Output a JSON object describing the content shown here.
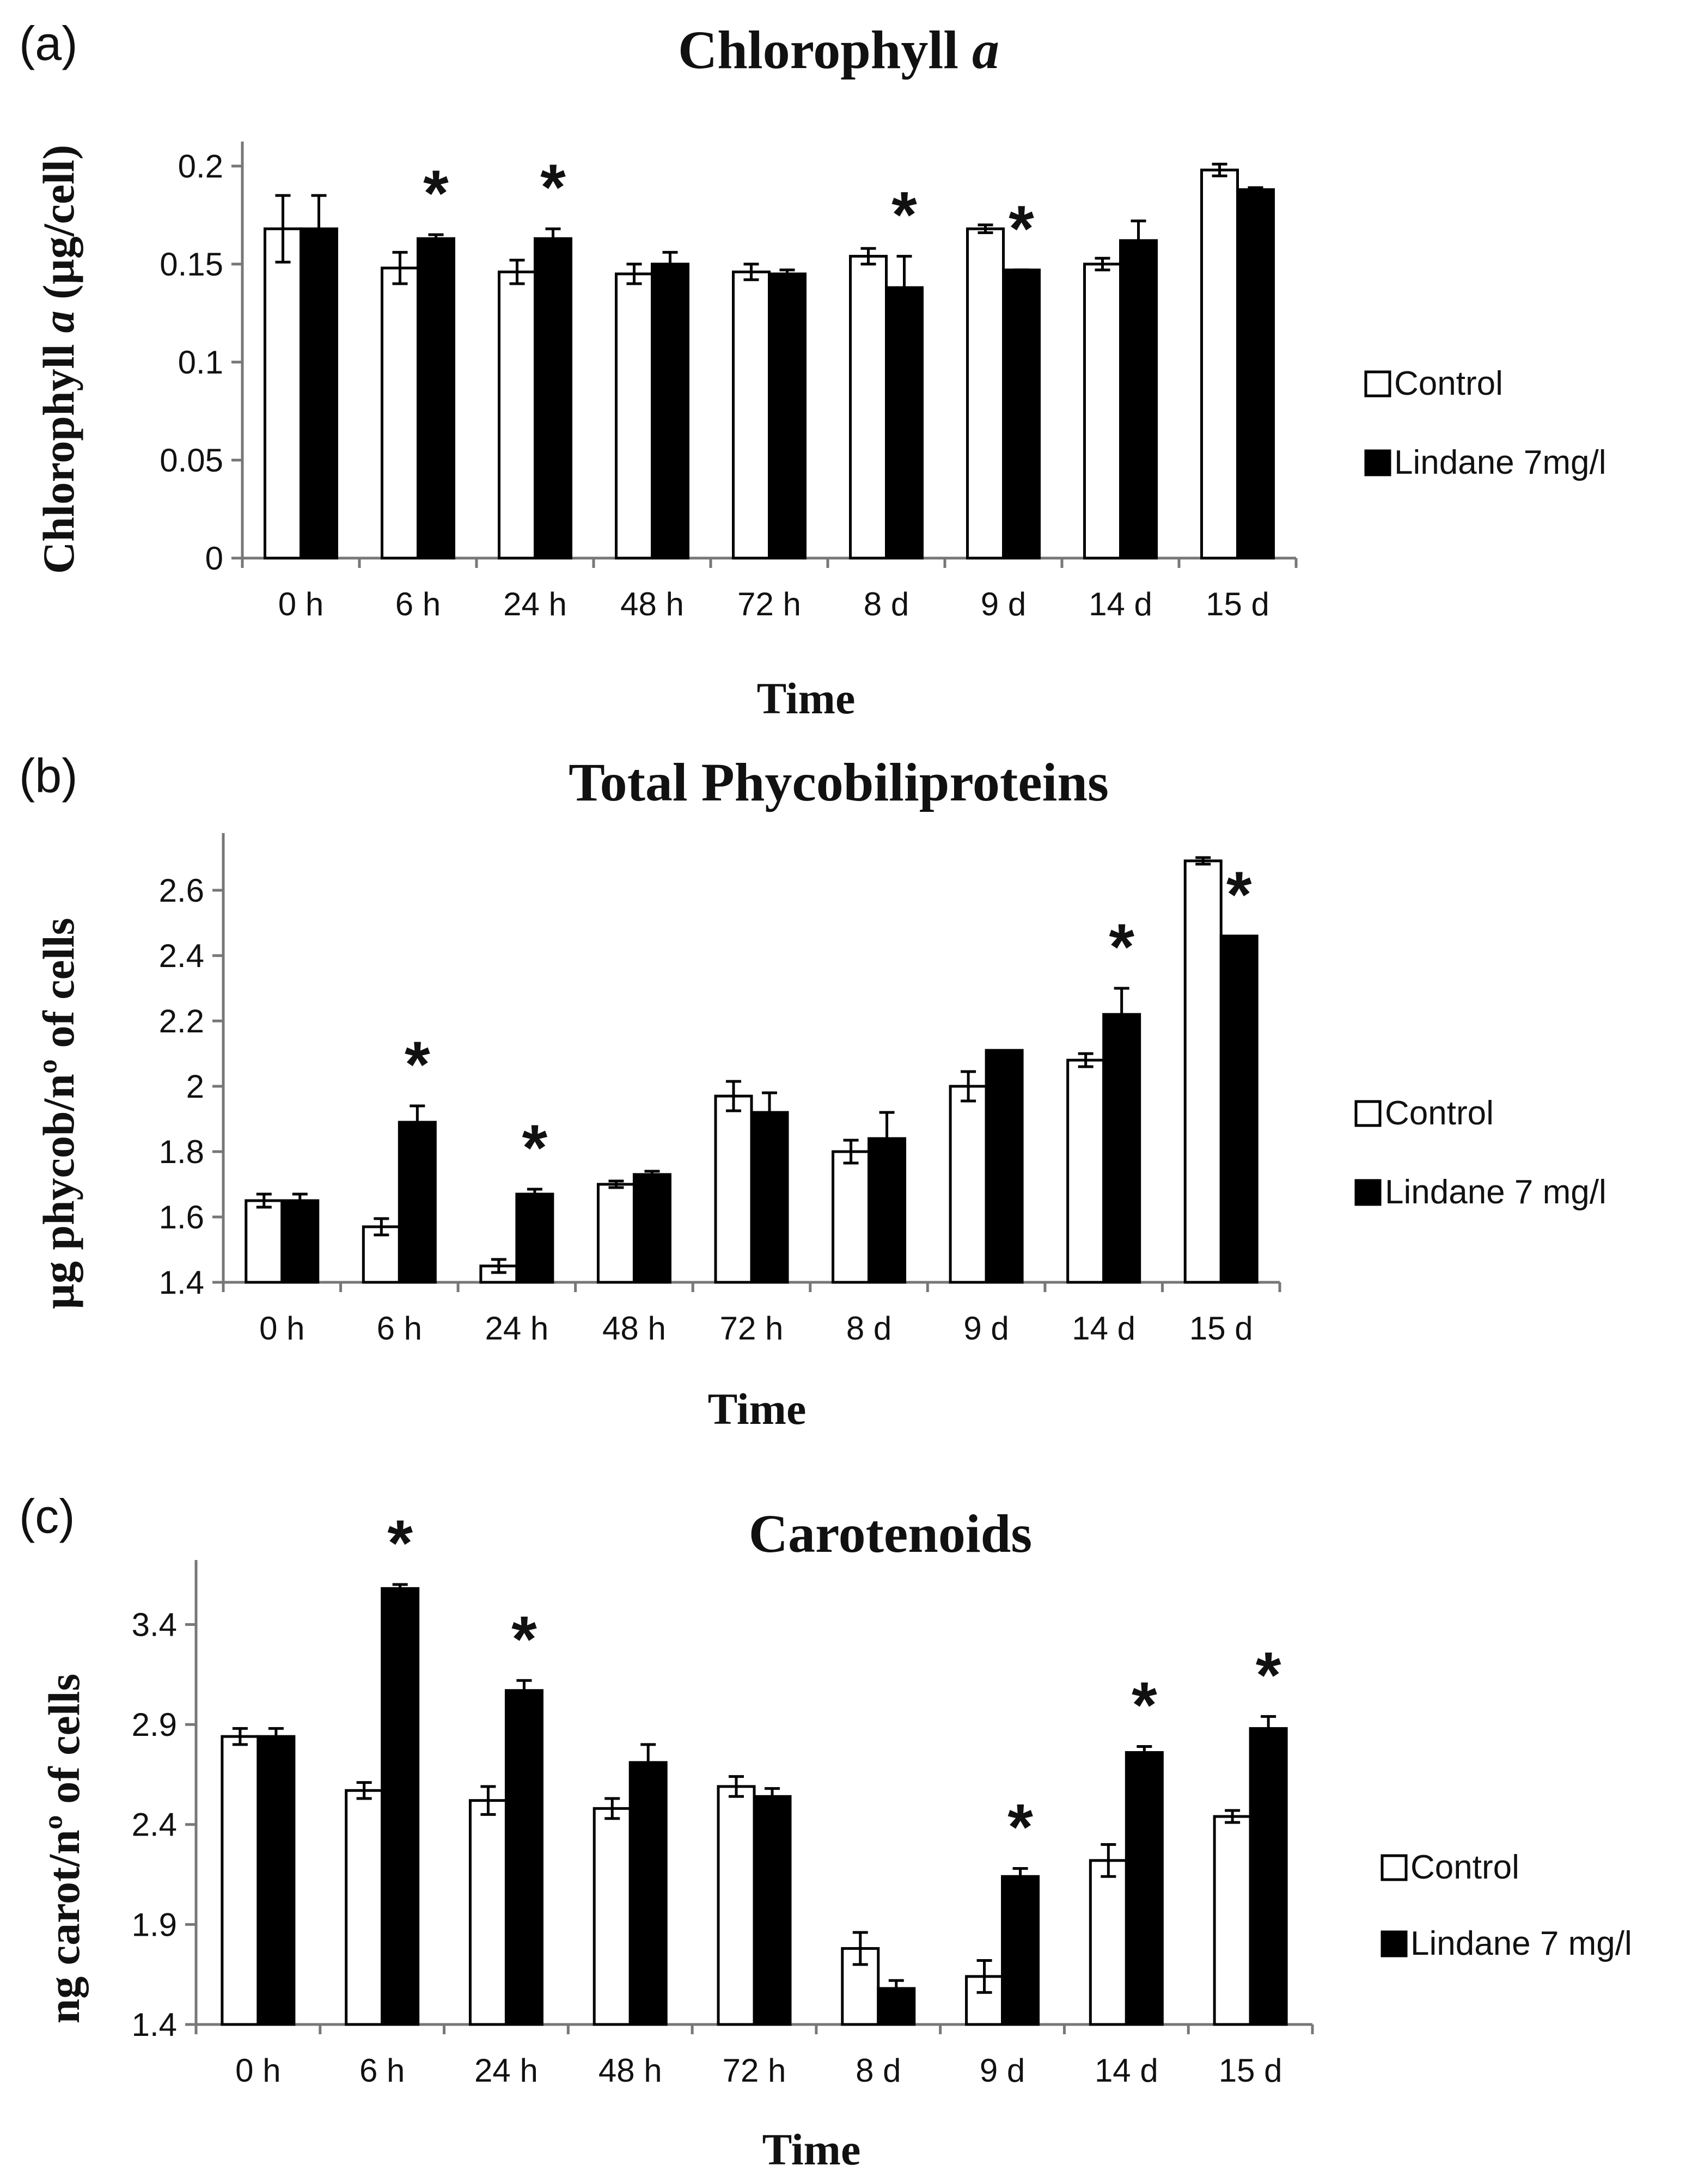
{
  "chart_data": [
    {
      "type": "bar",
      "panel_label": "(a)",
      "title": "Chlorophyll a",
      "title_main": "Chlorophyll ",
      "title_italic": "a",
      "ylabel_main": "Chlorophyll ",
      "ylabel_italic": "a",
      "ylabel_rest": " (µg/cell)",
      "xlabel": "Time",
      "categories": [
        "0 h",
        "6 h",
        "24 h",
        "48 h",
        "72 h",
        "8 d",
        "9 d",
        "14 d",
        "15 d"
      ],
      "ylim": [
        0,
        0.2
      ],
      "yticks": [
        0,
        0.05,
        0.1,
        0.15,
        0.2
      ],
      "ytick_labels": [
        "0",
        "0.05",
        "0.1",
        "0.15",
        "0.2"
      ],
      "series": [
        {
          "name": "Control",
          "values": [
            0.168,
            0.148,
            0.146,
            0.145,
            0.146,
            0.154,
            0.168,
            0.15,
            0.198
          ],
          "errors": [
            0.017,
            0.008,
            0.006,
            0.005,
            0.004,
            0.004,
            0.002,
            0.003,
            0.003
          ]
        },
        {
          "name": "Lindane 7mg/l",
          "values": [
            0.168,
            0.163,
            0.163,
            0.15,
            0.145,
            0.138,
            0.147,
            0.162,
            0.188
          ],
          "errors": [
            0.017,
            0.002,
            0.005,
            0.006,
            0.002,
            0.016,
            0.0,
            0.01,
            0.001
          ]
        }
      ],
      "significance": [
        "",
        "*",
        "*",
        "",
        "",
        "*",
        "*",
        "",
        ""
      ],
      "legend": [
        "Control",
        "Lindane 7mg/l"
      ]
    },
    {
      "type": "bar",
      "panel_label": "(b)",
      "title": "Total Phycobiliproteins",
      "ylabel": "µg phycob/nº of cells",
      "xlabel": "Time",
      "categories": [
        "0 h",
        "6 h",
        "24 h",
        "48 h",
        "72 h",
        "8 d",
        "9 d",
        "14 d",
        "15 d"
      ],
      "ylim": [
        1.4,
        2.7
      ],
      "yticks": [
        1.4,
        1.6,
        1.8,
        2.0,
        2.2,
        2.4,
        2.6
      ],
      "ytick_labels": [
        "1.4",
        "1.6",
        "1.8",
        "2",
        "2.2",
        "2.4",
        "2.6"
      ],
      "series": [
        {
          "name": "Control",
          "values": [
            1.65,
            1.57,
            1.45,
            1.7,
            1.97,
            1.8,
            2.0,
            2.08,
            2.69
          ],
          "errors": [
            0.02,
            0.025,
            0.02,
            0.01,
            0.045,
            0.035,
            0.045,
            0.02,
            0.01
          ]
        },
        {
          "name": "Lindane 7 mg/l",
          "values": [
            1.65,
            1.89,
            1.67,
            1.73,
            1.92,
            1.84,
            2.11,
            2.22,
            2.46
          ],
          "errors": [
            0.02,
            0.05,
            0.015,
            0.01,
            0.06,
            0.08,
            0.0,
            0.08,
            0.0
          ]
        }
      ],
      "significance": [
        "",
        "*",
        "*",
        "",
        "",
        "",
        "",
        "*",
        "*"
      ],
      "legend": [
        "Control",
        "Lindane 7 mg/l"
      ]
    },
    {
      "type": "bar",
      "panel_label": "(c)",
      "title": "Carotenoids",
      "ylabel": "ng carot/nº of cells",
      "xlabel": "Time",
      "categories": [
        "0 h",
        "6 h",
        "24 h",
        "48 h",
        "72 h",
        "8 d",
        "9 d",
        "14 d",
        "15 d"
      ],
      "ylim": [
        1.4,
        3.6
      ],
      "yticks": [
        1.4,
        1.9,
        2.4,
        2.9,
        3.4
      ],
      "ytick_labels": [
        "1.4",
        "1.9",
        "2.4",
        "2.9",
        "3.4"
      ],
      "series": [
        {
          "name": "Control",
          "values": [
            2.84,
            2.57,
            2.52,
            2.48,
            2.59,
            1.78,
            1.64,
            2.22,
            2.44
          ],
          "errors": [
            0.04,
            0.04,
            0.07,
            0.05,
            0.05,
            0.08,
            0.08,
            0.08,
            0.03
          ]
        },
        {
          "name": "Lindane 7 mg/l",
          "values": [
            2.84,
            3.58,
            3.07,
            2.71,
            2.54,
            1.58,
            2.14,
            2.76,
            2.88
          ],
          "errors": [
            0.04,
            0.02,
            0.05,
            0.09,
            0.04,
            0.04,
            0.04,
            0.03,
            0.06
          ]
        }
      ],
      "significance": [
        "",
        "*",
        "*",
        "",
        "",
        "",
        "*",
        "*",
        "*"
      ],
      "legend": [
        "Control",
        "Lindane 7 mg/l"
      ]
    }
  ]
}
